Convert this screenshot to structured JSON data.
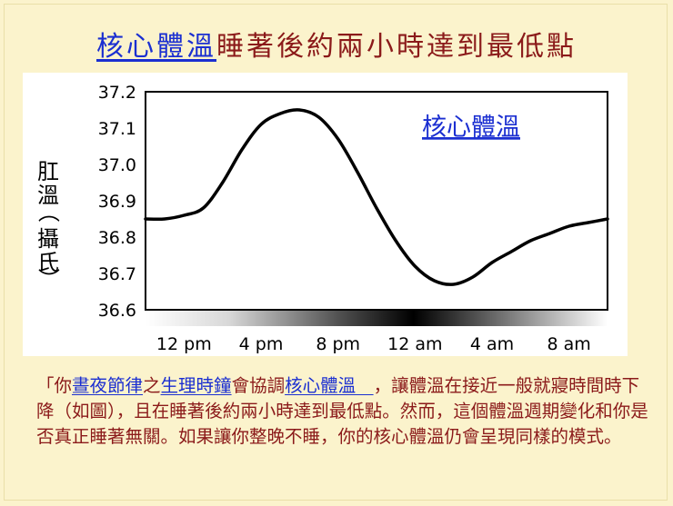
{
  "slide": {
    "title_link": "核心體溫",
    "title_rest": "睡著後約兩小時達到最低點"
  },
  "paragraph": {
    "p1": "「你",
    "l1": "晝夜節律",
    "p2": "之",
    "l2": "生理時鐘",
    "p3": "會協調",
    "l3": "核心體溫　",
    "p4": "，讓體溫在接近一般就寢時間時下降（如圖），且在睡著後約兩小時達到最低點。然而，這個體溫週期變化和你是否真正睡著無關。如果讓你整晚不睡，你的核心體溫仍會呈現同樣的模式。"
  },
  "colors": {
    "title": "#8b1a1a",
    "link": "#1b2fd1",
    "background": "#fbf3cc",
    "line": "#000000"
  },
  "chart_data": {
    "type": "line",
    "series": [
      {
        "name": "核心體溫",
        "x": [
          "10 am",
          "11 am",
          "12 pm",
          "1 pm",
          "2 pm",
          "3 pm",
          "4 pm",
          "5 pm",
          "6 pm",
          "7 pm",
          "8 pm",
          "9 pm",
          "10 pm",
          "11 pm",
          "12 am",
          "1 am",
          "2 am",
          "3 am",
          "4 am",
          "5 am",
          "6 am",
          "7 am",
          "8 am",
          "9 am",
          "10 am"
        ],
        "values": [
          36.85,
          36.85,
          36.86,
          36.88,
          36.95,
          37.04,
          37.11,
          37.14,
          37.15,
          37.13,
          37.07,
          36.98,
          36.88,
          36.79,
          36.72,
          36.68,
          36.67,
          36.69,
          36.73,
          36.76,
          36.79,
          36.81,
          36.83,
          36.84,
          36.85
        ]
      }
    ],
    "ylabel": "肛溫（攝氏）",
    "yticks": [
      "37.2",
      "37.1",
      "37.0",
      "36.9",
      "36.8",
      "36.7",
      "36.6"
    ],
    "ylim": [
      36.6,
      37.2
    ],
    "xticks": [
      "12 pm",
      "4 pm",
      "8 pm",
      "12 am",
      "4 am",
      "8 am"
    ],
    "grid": false,
    "legend": "top-right",
    "gradient_bar": "light-dark-light (day-night-day)"
  }
}
